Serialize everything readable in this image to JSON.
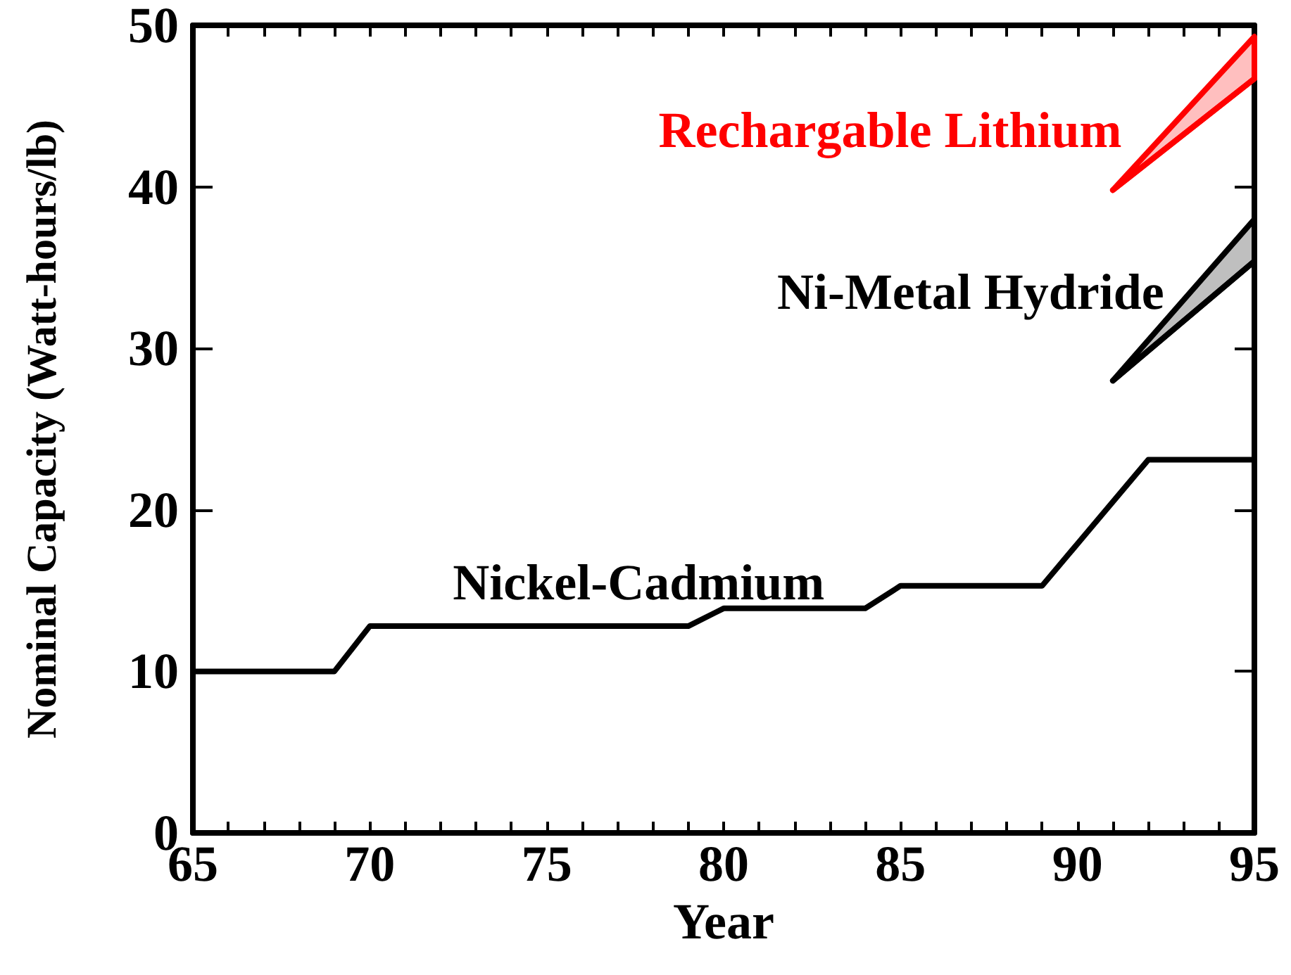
{
  "chart_data": {
    "type": "line",
    "xlabel": "Year",
    "ylabel": "Nominal Capacity (Watt-hours/lb)",
    "xlim": [
      65,
      95
    ],
    "ylim": [
      0,
      50
    ],
    "xticks": [
      65,
      {
        "value": 66,
        "label": null
      },
      {
        "value": 67,
        "label": null
      },
      {
        "value": 68,
        "label": null
      },
      {
        "value": 69,
        "label": null
      },
      70,
      {
        "value": 71,
        "label": null
      },
      {
        "value": 72,
        "label": null
      },
      {
        "value": 73,
        "label": null
      },
      {
        "value": 74,
        "label": null
      },
      75,
      {
        "value": 76,
        "label": null
      },
      {
        "value": 77,
        "label": null
      },
      {
        "value": 78,
        "label": null
      },
      {
        "value": 79,
        "label": null
      },
      80,
      {
        "value": 81,
        "label": null
      },
      {
        "value": 82,
        "label": null
      },
      {
        "value": 83,
        "label": null
      },
      {
        "value": 84,
        "label": null
      },
      85,
      {
        "value": 86,
        "label": null
      },
      {
        "value": 87,
        "label": null
      },
      {
        "value": 88,
        "label": null
      },
      {
        "value": 89,
        "label": null
      },
      90,
      {
        "value": 91,
        "label": null
      },
      {
        "value": 92,
        "label": null
      },
      {
        "value": 93,
        "label": null
      },
      {
        "value": 94,
        "label": null
      },
      95
    ],
    "yticks": [
      0,
      10,
      20,
      30,
      40,
      50
    ],
    "grid": false,
    "legend": false,
    "marker": "none",
    "line_style": "solid",
    "series": [
      {
        "name": "Nickel-Cadmium",
        "color": "#000000",
        "x": [
          65,
          69,
          70,
          79,
          80,
          84,
          85,
          89,
          92,
          95
        ],
        "values": [
          10,
          10,
          12.8,
          12.8,
          13.9,
          13.9,
          15.3,
          15.3,
          23.1,
          23.1
        ]
      },
      {
        "name": "Ni-Metal Hydride",
        "color": "#000000",
        "x": [
          91,
          95
        ],
        "values": [
          28,
          35.4
        ],
        "lower": [
          28,
          35.4
        ],
        "upper": [
          28,
          38
        ]
      },
      {
        "name": "Rechargable Lithium",
        "color": "#ff0000",
        "x": [
          91,
          95
        ],
        "values": [
          39.8,
          46.7
        ],
        "lower": [
          39.8,
          46.7
        ],
        "upper": [
          39.8,
          49.3
        ]
      }
    ]
  }
}
